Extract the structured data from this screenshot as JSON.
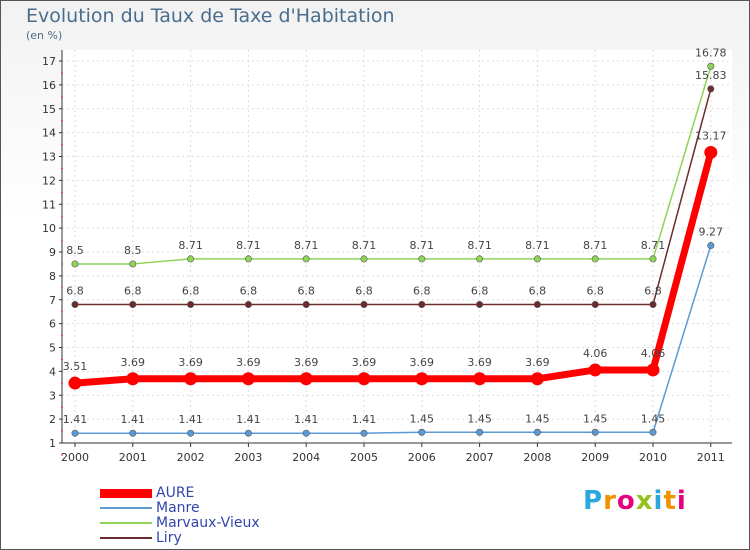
{
  "title": "Evolution du Taux de Taxe d'Habitation",
  "subtitle": "(en %)",
  "logo_text": "Proxiti",
  "logo_colors": [
    "#2aa7df",
    "#f39200",
    "#e6007e",
    "#95c11f",
    "#2aa7df",
    "#f39200",
    "#e6007e"
  ],
  "chart_data": {
    "type": "line",
    "categories": [
      "2000",
      "2001",
      "2002",
      "2003",
      "2004",
      "2005",
      "2006",
      "2007",
      "2008",
      "2009",
      "2010",
      "2011"
    ],
    "ylim": [
      1,
      17
    ],
    "yticks": [
      1,
      2,
      3,
      4,
      5,
      6,
      7,
      8,
      9,
      10,
      11,
      12,
      13,
      14,
      15,
      16,
      17
    ],
    "grid": true,
    "series": [
      {
        "name": "AURE",
        "color": "#ff0000",
        "values": [
          3.51,
          3.69,
          3.69,
          3.69,
          3.69,
          3.69,
          3.69,
          3.69,
          3.69,
          4.06,
          4.06,
          13.17
        ],
        "labels": [
          "3.51",
          "3.69",
          "3.69",
          "3.69",
          "3.69",
          "3.69",
          "3.69",
          "3.69",
          "3.69",
          "4.06",
          "4.06",
          "13.17"
        ]
      },
      {
        "name": "Manre",
        "color": "#5b9bd5",
        "values": [
          1.41,
          1.41,
          1.41,
          1.41,
          1.41,
          1.41,
          1.45,
          1.45,
          1.45,
          1.45,
          1.45,
          9.27
        ],
        "labels": [
          "1.41",
          "1.41",
          "1.41",
          "1.41",
          "1.41",
          "1.41",
          "1.45",
          "1.45",
          "1.45",
          "1.45",
          "1.45",
          "9.27"
        ]
      },
      {
        "name": "Marvaux-Vieux",
        "color": "#8fd457",
        "values": [
          8.5,
          8.5,
          8.71,
          8.71,
          8.71,
          8.71,
          8.71,
          8.71,
          8.71,
          8.71,
          8.71,
          16.78
        ],
        "labels": [
          "8.5",
          "8.5",
          "8.71",
          "8.71",
          "8.71",
          "8.71",
          "8.71",
          "8.71",
          "8.71",
          "8.71",
          "8.71",
          "16.78"
        ]
      },
      {
        "name": "Liry",
        "color": "#6b2c2c",
        "values": [
          6.8,
          6.8,
          6.8,
          6.8,
          6.8,
          6.8,
          6.8,
          6.8,
          6.8,
          6.8,
          6.8,
          15.83
        ],
        "labels": [
          "6.8",
          "6.8",
          "6.8",
          "6.8",
          "6.8",
          "6.8",
          "6.8",
          "6.8",
          "6.8",
          "6.8",
          "6.8",
          "15.83"
        ]
      }
    ],
    "legend": [
      "AURE",
      "Manre",
      "Marvaux-Vieux",
      "Liry"
    ]
  }
}
